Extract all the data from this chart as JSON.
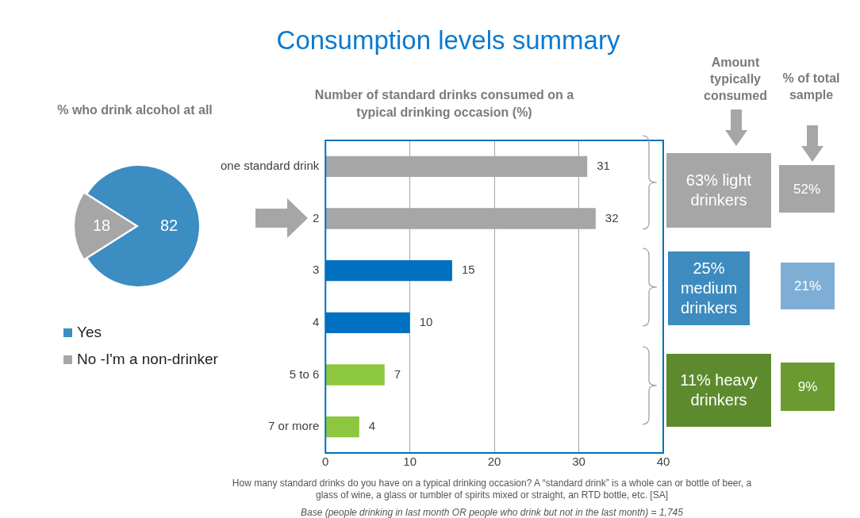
{
  "chart_data": [
    {
      "type": "pie",
      "title": "% who drink alcohol at all",
      "categories": [
        "Yes",
        "No -I'm a non-drinker"
      ],
      "values": [
        82,
        18
      ],
      "colors": [
        "#3b8dc2",
        "#a6a6a6"
      ],
      "legend": "bottom",
      "data_labels": true
    },
    {
      "type": "bar",
      "orientation": "horizontal",
      "title": "Consumption levels summary",
      "subtitle": "Number of standard drinks consumed on a typical drinking occasion (%)",
      "categories": [
        "one standard drink",
        "2",
        "3",
        "4",
        "5 to 6",
        "7 or more"
      ],
      "values": [
        31,
        32,
        15,
        10,
        7,
        4
      ],
      "colors": [
        "#a6a6a6",
        "#a6a6a6",
        "#0070c0",
        "#0070c0",
        "#8dc63f",
        "#8dc63f"
      ],
      "xlim": [
        0,
        40
      ],
      "xticks": [
        0,
        10,
        20,
        30,
        40
      ],
      "grid": "x",
      "data_labels": true,
      "annotations": [
        "How many standard drinks do you have on a typical drinking occasion? A “standard drink” is a whole can or bottle of beer, a glass of wine, a glass or tumbler of spirits mixed or straight, an RTD bottle, etc. [SA]",
        "Base (people drinking in last month OR people  who drink but not in the last month) = 1,745"
      ]
    },
    {
      "type": "other",
      "title": "Amount typically consumed",
      "annotations": [
        "63% light drinkers",
        "25% medium drinkers",
        "11% heavy drinkers"
      ],
      "colors": [
        "#a6a6a6",
        "#3d8bbf",
        "#5e8a2e"
      ]
    },
    {
      "type": "other",
      "title": "% of total sample",
      "annotations": [
        "52%",
        "21%",
        "9%"
      ],
      "colors": [
        "#a6a6a6",
        "#7eaed6",
        "#6b9b30"
      ]
    }
  ]
}
